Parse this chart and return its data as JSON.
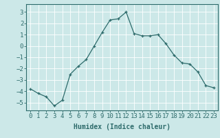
{
  "x": [
    0,
    1,
    2,
    3,
    4,
    5,
    6,
    7,
    8,
    9,
    10,
    11,
    12,
    13,
    14,
    15,
    16,
    17,
    18,
    19,
    20,
    21,
    22,
    23
  ],
  "y": [
    -3.8,
    -4.2,
    -4.5,
    -5.3,
    -4.8,
    -2.5,
    -1.8,
    -1.2,
    0.0,
    1.2,
    2.3,
    2.4,
    3.0,
    1.1,
    0.9,
    0.9,
    1.0,
    0.2,
    -0.8,
    -1.5,
    -1.6,
    -2.3,
    -3.5,
    -3.7
  ],
  "line_color": "#2d6b6b",
  "marker": "+",
  "marker_size": 3,
  "bg_color": "#cce8e8",
  "grid_color": "#ffffff",
  "xlabel": "Humidex (Indice chaleur)",
  "xlim": [
    -0.5,
    23.5
  ],
  "ylim": [
    -5.7,
    3.7
  ],
  "yticks": [
    -5,
    -4,
    -3,
    -2,
    -1,
    0,
    1,
    2,
    3
  ],
  "xtick_labels": [
    "0",
    "1",
    "2",
    "3",
    "4",
    "5",
    "6",
    "7",
    "8",
    "9",
    "10",
    "11",
    "12",
    "13",
    "14",
    "15",
    "16",
    "17",
    "18",
    "19",
    "20",
    "21",
    "22",
    "23"
  ],
  "xlabel_fontsize": 7,
  "tick_fontsize": 6.5,
  "line_width": 0.9,
  "marker_edge_width": 0.9
}
